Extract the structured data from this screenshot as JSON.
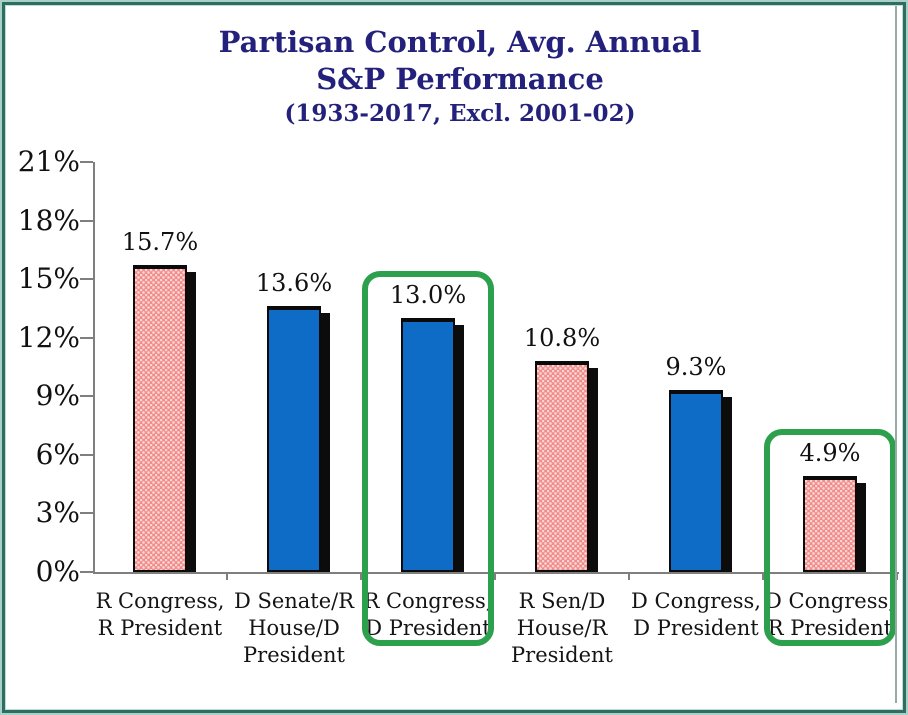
{
  "title": {
    "line1": "Partisan Control, Avg. Annual",
    "line2": "S&P Performance",
    "line3": "(1933-2017, Excl. 2001-02)",
    "color": "#23217b"
  },
  "chart_data": {
    "type": "bar",
    "title": "Partisan Control, Avg. Annual S&P Performance (1933-2017, Excl. 2001-02)",
    "categories": [
      "R Congress,\nR President",
      "D Senate/R\nHouse/D\nPresident",
      "R Congress,\nD President",
      "R Sen/D\nHouse/R\nPresident",
      "D Congress,\nD President",
      "D Congress,\nR President"
    ],
    "values": [
      15.7,
      13.6,
      13.0,
      10.8,
      9.3,
      4.9
    ],
    "value_labels": [
      "15.7%",
      "13.6%",
      "13.0%",
      "10.8%",
      "9.3%",
      "4.9%"
    ],
    "bar_styles": [
      "pink-dotted",
      "blue-solid",
      "blue-solid",
      "pink-dotted",
      "blue-solid",
      "pink-dotted"
    ],
    "highlighted_indices": [
      2,
      5
    ],
    "xlabel": "",
    "ylabel": "",
    "ylim": [
      0,
      21
    ],
    "ytick_step": 3,
    "ytick_labels": [
      "0%",
      "3%",
      "6%",
      "9%",
      "12%",
      "15%",
      "18%",
      "21%"
    ],
    "grid": false,
    "legend": null,
    "colors": {
      "blue_bar": "#0e6bc6",
      "pink_bar": "#f18c8c",
      "pink_dot": "#fcd6d2",
      "bar_outline": "#0a0a0a",
      "highlight_green": "#2ca04c",
      "axis_gray": "#7f7f7f",
      "title_navy": "#23217b",
      "frame_teal_dark": "#2e6e62",
      "frame_teal_light": "#bcded5"
    }
  }
}
